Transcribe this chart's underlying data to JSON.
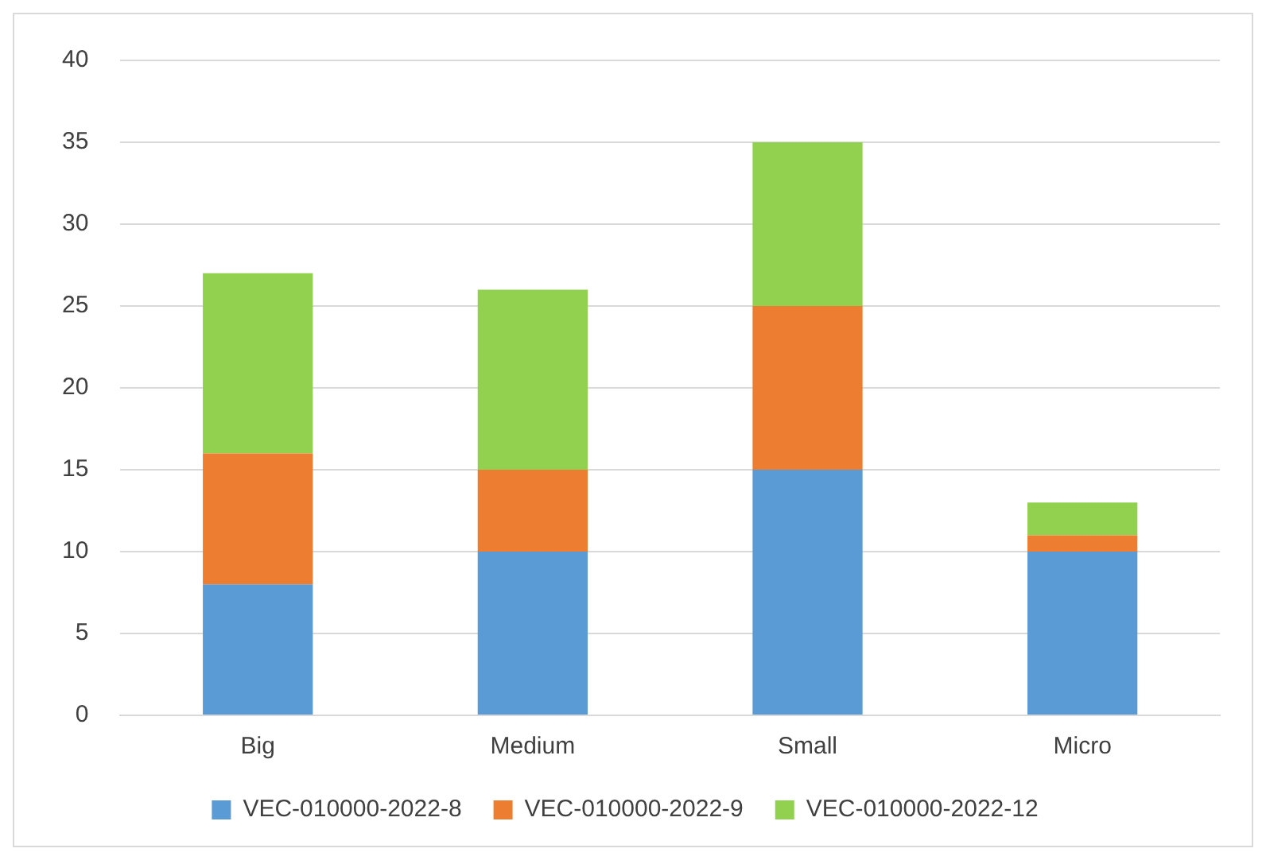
{
  "chart_data": {
    "type": "bar",
    "stacked": true,
    "categories": [
      "Big",
      "Medium",
      "Small",
      "Micro"
    ],
    "series": [
      {
        "name": "VEC-010000-2022-8",
        "color": "#5b9bd5",
        "values": [
          8,
          10,
          15,
          10
        ]
      },
      {
        "name": "VEC-010000-2022-9",
        "color": "#ed7d31",
        "values": [
          8,
          5,
          10,
          1
        ]
      },
      {
        "name": "VEC-010000-2022-12",
        "color": "#92d050",
        "values": [
          11,
          11,
          10,
          2
        ]
      }
    ],
    "ylim": [
      0,
      40
    ],
    "yticks": [
      0,
      5,
      10,
      15,
      20,
      25,
      30,
      35,
      40
    ],
    "grid": "y",
    "legend": "bottom"
  }
}
